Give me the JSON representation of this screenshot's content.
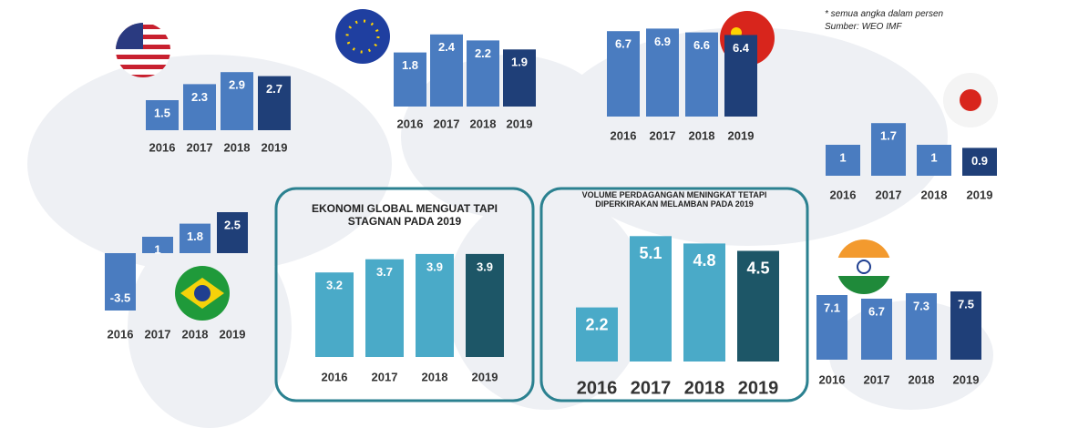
{
  "notes": [
    "* semua angka dalam persen",
    "Sumber: WEO IMF"
  ],
  "chart_data": [
    {
      "type": "bar",
      "categories": [
        "2016",
        "2017",
        "2018",
        "2019"
      ],
      "values": [
        1.5,
        2.3,
        2.9,
        2.7
      ],
      "colors": [
        "#4a7cc0",
        "#4a7cc0",
        "#4a7cc0",
        "#1f3f78"
      ]
    },
    {
      "type": "bar",
      "categories": [
        "2016",
        "2017",
        "2018",
        "2019"
      ],
      "values": [
        1.8,
        2.4,
        2.2,
        1.9
      ],
      "colors": [
        "#4a7cc0",
        "#4a7cc0",
        "#4a7cc0",
        "#1f3f78"
      ]
    },
    {
      "type": "bar",
      "categories": [
        "2016",
        "2017",
        "2018",
        "2019"
      ],
      "values": [
        6.7,
        6.9,
        6.6,
        6.4
      ],
      "colors": [
        "#4a7cc0",
        "#4a7cc0",
        "#4a7cc0",
        "#1f3f78"
      ]
    },
    {
      "type": "bar",
      "categories": [
        "2016",
        "2017",
        "2018",
        "2019"
      ],
      "values": [
        1,
        1.7,
        1,
        0.9
      ],
      "colors": [
        "#4a7cc0",
        "#4a7cc0",
        "#4a7cc0",
        "#1f3f78"
      ]
    },
    {
      "type": "bar",
      "categories": [
        "2016",
        "2017",
        "2018",
        "2019"
      ],
      "values": [
        -3.5,
        1,
        1.8,
        2.5
      ],
      "colors": [
        "#4a7cc0",
        "#4a7cc0",
        "#4a7cc0",
        "#1f3f78"
      ]
    },
    {
      "type": "bar",
      "title": "EKONOMI GLOBAL MENGUAT TAPI STAGNAN PADA 2019",
      "categories": [
        "2016",
        "2017",
        "2018",
        "2019"
      ],
      "values": [
        3.2,
        3.7,
        3.9,
        3.9
      ],
      "colors": [
        "#4aaac8",
        "#4aaac8",
        "#4aaac8",
        "#1d5667"
      ]
    },
    {
      "type": "bar",
      "title": "VOLUME PERDAGANGAN MENINGKAT TETAPI DIPERKIRAKAN MELAMBAN PADA 2019",
      "categories": [
        "2016",
        "2017",
        "2018",
        "2019"
      ],
      "values": [
        2.2,
        5.1,
        4.8,
        4.5
      ],
      "colors": [
        "#4aaac8",
        "#4aaac8",
        "#4aaac8",
        "#1d5667"
      ]
    },
    {
      "type": "bar",
      "categories": [
        "2016",
        "2017",
        "2018",
        "2019"
      ],
      "values": [
        7.1,
        6.7,
        7.3,
        7.5
      ],
      "colors": [
        "#4a7cc0",
        "#4a7cc0",
        "#4a7cc0",
        "#1f3f78"
      ]
    }
  ]
}
